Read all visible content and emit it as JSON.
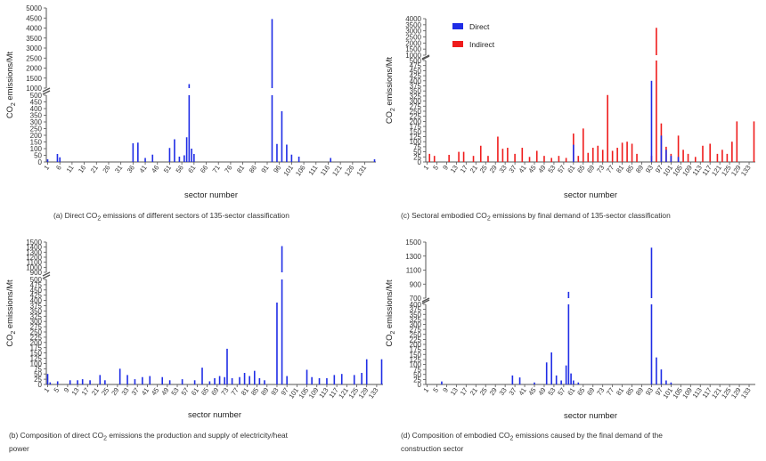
{
  "colors": {
    "direct": "#1f2de6",
    "indirect": "#ef1c1c",
    "axis": "#555555"
  },
  "chart_data": [
    {
      "id": "a",
      "type": "bar",
      "caption": "(a) Direct CO2 emissions of different sectors of 135-sector classification",
      "caption_parts": [
        "(a) Direct CO",
        "2",
        " emissions of different sectors of 135-sector classification"
      ],
      "xlabel": "sector number",
      "ylabel_parts": [
        "CO",
        "2",
        " emissions/Mt"
      ],
      "n_sectors": 135,
      "x_ticks": [
        "1",
        "6",
        "11",
        "16",
        "21",
        "26",
        "31",
        "36",
        "41",
        "46",
        "51",
        "56",
        "61",
        "66",
        "71",
        "76",
        "81",
        "86",
        "91",
        "96",
        "101",
        "106",
        "111",
        "116",
        "121",
        "126",
        "131"
      ],
      "y_lower_ticks": [
        "0",
        "50",
        "100",
        "150",
        "200",
        "250",
        "300",
        "350",
        "400",
        "450",
        "500"
      ],
      "y_upper_ticks": [
        "1000",
        "1500",
        "2000",
        "2500",
        "3000",
        "3500",
        "4000",
        "4500",
        "5000"
      ],
      "axis_break": {
        "lower_max": 500,
        "upper_min": 1000,
        "upper_max": 5000
      },
      "series": [
        {
          "name": "Direct",
          "values": [
            [
              1,
              20
            ],
            [
              5,
              60
            ],
            [
              6,
              35
            ],
            [
              36,
              140
            ],
            [
              38,
              145
            ],
            [
              41,
              30
            ],
            [
              44,
              55
            ],
            [
              51,
              105
            ],
            [
              53,
              170
            ],
            [
              55,
              40
            ],
            [
              57,
              50
            ],
            [
              58,
              185
            ],
            [
              59,
              1200
            ],
            [
              60,
              100
            ],
            [
              61,
              60
            ],
            [
              93,
              4450
            ],
            [
              95,
              135
            ],
            [
              97,
              380
            ],
            [
              99,
              130
            ],
            [
              101,
              55
            ],
            [
              104,
              40
            ],
            [
              117,
              30
            ],
            [
              135,
              20
            ]
          ]
        }
      ]
    },
    {
      "id": "b",
      "type": "bar",
      "caption": "(b) Composition of direct CO2 emissions the production and supply of electricity/heat power",
      "caption_parts": [
        "(b) Composition of direct CO",
        "2",
        " emissions the production and supply of electricity/heat",
        "power"
      ],
      "xlabel": "sector number",
      "ylabel_parts": [
        "CO",
        "2",
        " emissions/Mt"
      ],
      "n_sectors": 135,
      "x_ticks": [
        "1",
        "5",
        "9",
        "13",
        "17",
        "21",
        "25",
        "29",
        "33",
        "37",
        "41",
        "45",
        "49",
        "53",
        "57",
        "61",
        "65",
        "69",
        "73",
        "77",
        "81",
        "85",
        "89",
        "93",
        "97",
        "101",
        "105",
        "109",
        "113",
        "117",
        "121",
        "125",
        "129",
        "133"
      ],
      "y_lower_ticks": [
        "0",
        "25",
        "50",
        "75",
        "100",
        "125",
        "150",
        "175",
        "200",
        "225",
        "250",
        "275",
        "300",
        "325",
        "350",
        "375",
        "400",
        "425",
        "450",
        "475",
        "500"
      ],
      "y_upper_ticks": [
        "900",
        "1000",
        "1100",
        "1200",
        "1300",
        "1400",
        "1500"
      ],
      "axis_break": {
        "lower_max": 500,
        "upper_min": 900,
        "upper_max": 1500
      },
      "series": [
        {
          "name": "Direct",
          "values": [
            [
              1,
              50
            ],
            [
              2,
              10
            ],
            [
              5,
              15
            ],
            [
              10,
              20
            ],
            [
              13,
              20
            ],
            [
              15,
              25
            ],
            [
              18,
              20
            ],
            [
              22,
              45
            ],
            [
              24,
              20
            ],
            [
              30,
              75
            ],
            [
              33,
              45
            ],
            [
              36,
              25
            ],
            [
              39,
              35
            ],
            [
              42,
              40
            ],
            [
              47,
              35
            ],
            [
              50,
              20
            ],
            [
              55,
              25
            ],
            [
              60,
              20
            ],
            [
              63,
              80
            ],
            [
              66,
              15
            ],
            [
              68,
              30
            ],
            [
              70,
              40
            ],
            [
              72,
              35
            ],
            [
              73,
              170
            ],
            [
              75,
              30
            ],
            [
              78,
              35
            ],
            [
              80,
              55
            ],
            [
              82,
              40
            ],
            [
              84,
              65
            ],
            [
              86,
              30
            ],
            [
              88,
              20
            ],
            [
              93,
              390
            ],
            [
              95,
              1420
            ],
            [
              97,
              40
            ],
            [
              105,
              70
            ],
            [
              107,
              35
            ],
            [
              110,
              30
            ],
            [
              113,
              30
            ],
            [
              116,
              45
            ],
            [
              119,
              50
            ],
            [
              124,
              45
            ],
            [
              127,
              55
            ],
            [
              129,
              120
            ],
            [
              135,
              120
            ]
          ]
        }
      ]
    },
    {
      "id": "c",
      "type": "bar",
      "caption": "(c) Sectoral embodied CO2 emissions by final demand of 135-sector classification",
      "caption_parts": [
        "(c) Sectoral embodied CO",
        "2",
        " emissions by final demand of 135-sector classification"
      ],
      "xlabel": "sector number",
      "ylabel_parts": [
        "CO",
        "2",
        " emissions/Mt"
      ],
      "n_sectors": 135,
      "x_ticks": [
        "1",
        "5",
        "9",
        "13",
        "17",
        "21",
        "25",
        "29",
        "33",
        "37",
        "41",
        "45",
        "49",
        "53",
        "57",
        "61",
        "65",
        "69",
        "73",
        "77",
        "81",
        "85",
        "89",
        "93",
        "97",
        "101",
        "105",
        "109",
        "113",
        "117",
        "121",
        "125",
        "129",
        "133"
      ],
      "y_lower_ticks": [
        "0",
        "25",
        "50",
        "75",
        "100",
        "125",
        "150",
        "175",
        "200",
        "225",
        "250",
        "275",
        "300",
        "325",
        "350",
        "375",
        "400",
        "425",
        "450",
        "475",
        "500"
      ],
      "y_upper_ticks": [
        "1000",
        "1500",
        "2000",
        "2500",
        "3000",
        "3500",
        "4000"
      ],
      "axis_break": {
        "lower_max": 500,
        "upper_min": 1000,
        "upper_max": 4000
      },
      "legend": [
        "Direct",
        "Indirect"
      ],
      "series": [
        {
          "name": "Indirect",
          "values": [
            [
              2,
              40
            ],
            [
              4,
              30
            ],
            [
              10,
              35
            ],
            [
              14,
              50
            ],
            [
              16,
              50
            ],
            [
              20,
              30
            ],
            [
              23,
              80
            ],
            [
              26,
              30
            ],
            [
              30,
              125
            ],
            [
              32,
              65
            ],
            [
              34,
              70
            ],
            [
              37,
              40
            ],
            [
              40,
              70
            ],
            [
              43,
              25
            ],
            [
              46,
              55
            ],
            [
              49,
              30
            ],
            [
              52,
              20
            ],
            [
              55,
              30
            ],
            [
              58,
              20
            ],
            [
              61,
              140
            ],
            [
              63,
              30
            ],
            [
              65,
              165
            ],
            [
              67,
              45
            ],
            [
              69,
              70
            ],
            [
              71,
              80
            ],
            [
              73,
              60
            ],
            [
              75,
              330
            ],
            [
              77,
              55
            ],
            [
              79,
              70
            ],
            [
              81,
              95
            ],
            [
              83,
              100
            ],
            [
              85,
              90
            ],
            [
              87,
              40
            ],
            [
              93,
              30
            ],
            [
              95,
              3250
            ],
            [
              97,
              190
            ],
            [
              99,
              75
            ],
            [
              101,
              40
            ],
            [
              104,
              130
            ],
            [
              106,
              60
            ],
            [
              108,
              40
            ],
            [
              111,
              25
            ],
            [
              114,
              80
            ],
            [
              117,
              90
            ],
            [
              120,
              40
            ],
            [
              122,
              60
            ],
            [
              124,
              40
            ],
            [
              126,
              100
            ],
            [
              128,
              200
            ],
            [
              135,
              200
            ]
          ]
        },
        {
          "name": "Direct",
          "values": [
            [
              61,
              85
            ],
            [
              93,
              400
            ],
            [
              97,
              130
            ],
            [
              99,
              60
            ],
            [
              101,
              30
            ],
            [
              104,
              25
            ]
          ]
        }
      ]
    },
    {
      "id": "d",
      "type": "bar",
      "caption": "(d) Composition of embodied CO2 emissions caused by the final demand of the construction sector",
      "caption_parts": [
        "(d) Composition of embodied CO",
        "2",
        " emissions caused by the final demand of the",
        "construction sector"
      ],
      "xlabel": "sector number",
      "ylabel_parts": [
        "CO",
        "2",
        " emissions/Mt"
      ],
      "n_sectors": 135,
      "x_ticks": [
        "1",
        "5",
        "9",
        "13",
        "17",
        "21",
        "25",
        "29",
        "33",
        "37",
        "41",
        "45",
        "49",
        "53",
        "57",
        "61",
        "65",
        "69",
        "73",
        "77",
        "81",
        "85",
        "89",
        "93",
        "97",
        "101",
        "105",
        "109",
        "113",
        "117",
        "121",
        "125",
        "129",
        "133"
      ],
      "y_lower_ticks": [
        "0",
        "25",
        "50",
        "75",
        "100",
        "125",
        "150",
        "175",
        "200",
        "225",
        "250",
        "275",
        "300",
        "325",
        "350",
        "375",
        "400"
      ],
      "y_upper_ticks": [
        "700",
        "900",
        "1100",
        "1300",
        "1500"
      ],
      "axis_break": {
        "lower_max": 400,
        "upper_min": 700,
        "upper_max": 1500
      },
      "series": [
        {
          "name": "Direct",
          "values": [
            [
              7,
              15
            ],
            [
              36,
              45
            ],
            [
              39,
              35
            ],
            [
              45,
              10
            ],
            [
              50,
              110
            ],
            [
              52,
              160
            ],
            [
              54,
              45
            ],
            [
              56,
              20
            ],
            [
              58,
              95
            ],
            [
              59,
              790
            ],
            [
              60,
              55
            ],
            [
              61,
              20
            ],
            [
              63,
              10
            ],
            [
              93,
              1420
            ],
            [
              95,
              135
            ],
            [
              97,
              75
            ],
            [
              99,
              20
            ],
            [
              101,
              10
            ]
          ]
        }
      ]
    }
  ]
}
